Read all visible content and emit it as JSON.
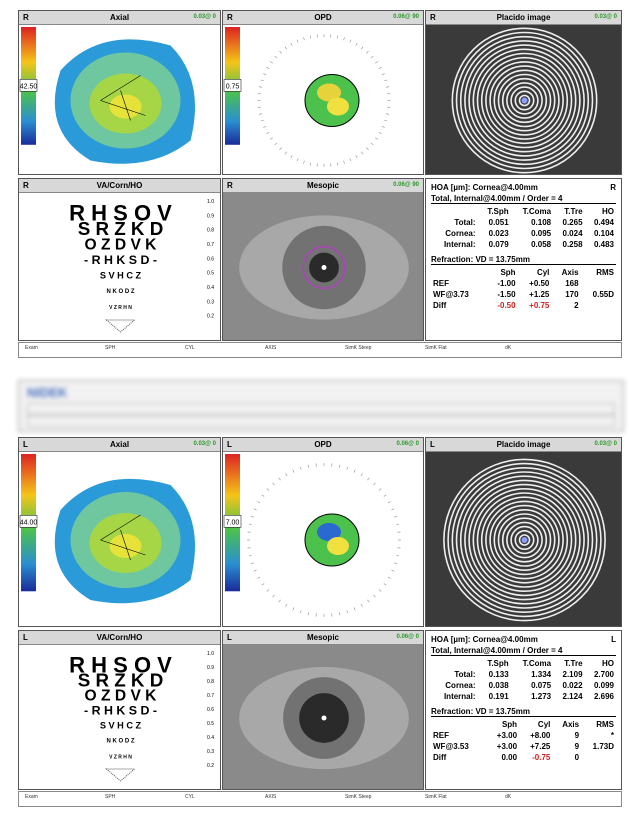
{
  "sections": [
    {
      "eye": "R",
      "panels": [
        {
          "title": "Axial",
          "badge": "0.03@ 0"
        },
        {
          "title": "OPD",
          "badge": "0.06@ 90"
        },
        {
          "title": "Placido image",
          "badge": "0.03@ 0"
        },
        {
          "title": "VA/Corn/HO"
        },
        {
          "title": "Mesopic",
          "badge": "0.06@ 90"
        }
      ],
      "axial_scale": "42.50",
      "opd_scale": "0.75",
      "chart_rows": [
        "R H S O V",
        "S R Z K D",
        "O Z D V K",
        "- R H K S D -",
        "S V H C Z",
        "N K O D Z",
        "V Z R H N"
      ],
      "acuity": [
        "1.0",
        "0.9",
        "0.8",
        "0.7",
        "0.6",
        "0.5",
        "0.4",
        "0.3",
        "0.2"
      ],
      "hoa": {
        "title": "HOA [µm]: Cornea@4.00mm",
        "subtitle": "Total, Internal@4.00mm / Order = 4",
        "columns": [
          "T.Sph",
          "T.Coma",
          "T.Tre",
          "HO"
        ],
        "rows": [
          {
            "label": "Total:",
            "values": [
              "0.051",
              "0.108",
              "0.265",
              "0.494"
            ]
          },
          {
            "label": "Cornea:",
            "values": [
              "0.023",
              "0.095",
              "0.024",
              "0.104"
            ]
          },
          {
            "label": "Internal:",
            "values": [
              "0.079",
              "0.058",
              "0.258",
              "0.483"
            ]
          }
        ],
        "refraction": "Refraction: VD = 13.75mm",
        "ref_columns": [
          "Sph",
          "Cyl",
          "Axis",
          "RMS"
        ],
        "ref_rows": [
          {
            "label": "REF",
            "values": [
              "-1.00",
              "+0.50",
              "168"
            ]
          },
          {
            "label": "WF@3.73",
            "values": [
              "-1.50",
              "+1.25",
              "170",
              "0.55D"
            ]
          },
          {
            "label": "Diff",
            "values": [
              "-0.50",
              "+0.75",
              "2"
            ],
            "red": [
              0,
              1
            ]
          }
        ]
      }
    },
    {
      "eye": "L",
      "panels": [
        {
          "title": "Axial",
          "badge": "0.03@ 0"
        },
        {
          "title": "OPD",
          "badge": "0.06@ 0"
        },
        {
          "title": "Placido image",
          "badge": "0.03@ 0"
        },
        {
          "title": "VA/Corn/HO"
        },
        {
          "title": "Mesopic",
          "badge": "0.06@ 0"
        }
      ],
      "axial_scale": "44.00",
      "opd_scale": "7.00",
      "chart_rows": [
        "R H S O V",
        "S R Z K D",
        "O Z D V K",
        "- R H K S D -",
        "S V H C Z",
        "N K O D Z",
        "V Z R H N"
      ],
      "acuity": [
        "1.0",
        "0.9",
        "0.8",
        "0.7",
        "0.6",
        "0.5",
        "0.4",
        "0.3",
        "0.2"
      ],
      "hoa": {
        "title": "HOA [µm]: Cornea@4.00mm",
        "subtitle": "Total, Internal@4.00mm / Order = 4",
        "columns": [
          "T.Sph",
          "T.Coma",
          "T.Tre",
          "HO"
        ],
        "rows": [
          {
            "label": "Total:",
            "values": [
              "0.133",
              "1.334",
              "2.109",
              "2.700"
            ]
          },
          {
            "label": "Cornea:",
            "values": [
              "0.038",
              "0.075",
              "0.022",
              "0.099"
            ]
          },
          {
            "label": "Internal:",
            "values": [
              "0.191",
              "1.273",
              "2.124",
              "2.696"
            ]
          }
        ],
        "refraction": "Refraction: VD = 13.75mm",
        "ref_columns": [
          "Sph",
          "Cyl",
          "Axis",
          "RMS"
        ],
        "ref_rows": [
          {
            "label": "REF",
            "values": [
              "+3.00",
              "+8.00",
              "9",
              "*"
            ]
          },
          {
            "label": "WF@3.53",
            "values": [
              "+3.00",
              "+7.25",
              "9",
              "1.73D"
            ]
          },
          {
            "label": "Diff",
            "values": [
              "0.00",
              "-0.75",
              "0"
            ],
            "red": [
              1
            ]
          }
        ]
      }
    }
  ],
  "footer": [
    "Exam",
    "SPH",
    "CYL",
    "AXIS",
    "SimK Steep",
    "SimK Flat",
    "dK"
  ],
  "blur_logo": "NIDEK"
}
